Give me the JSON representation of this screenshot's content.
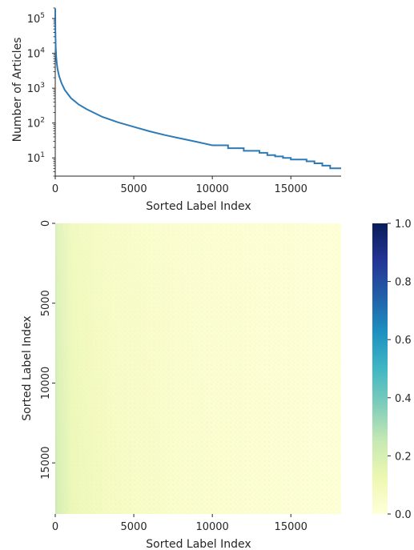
{
  "chart_data": [
    {
      "type": "line",
      "xlabel": "Sorted Label Index",
      "ylabel": "Number of Articles",
      "yscale": "log",
      "xlim": [
        0,
        18200
      ],
      "ylim": [
        3,
        200000
      ],
      "grid": false,
      "x_ticks": [
        0,
        5000,
        10000,
        15000
      ],
      "x_tick_labels": [
        "0",
        "5000",
        "10000",
        "15000"
      ],
      "y_ticks": [
        10,
        100,
        1000,
        10000,
        100000
      ],
      "y_tick_labels": [
        {
          "base": "10",
          "exp": "1"
        },
        {
          "base": "10",
          "exp": "2"
        },
        {
          "base": "10",
          "exp": "3"
        },
        {
          "base": "10",
          "exp": "4"
        },
        {
          "base": "10",
          "exp": "5"
        }
      ],
      "series": [
        {
          "color": "#2e7ab5",
          "x": [
            0,
            10,
            30,
            60,
            100,
            150,
            250,
            400,
            600,
            1000,
            1500,
            2000,
            3000,
            4000,
            5000,
            6000,
            7000,
            8000,
            9000,
            10000,
            11000,
            12000,
            13000,
            13500,
            14000,
            14500,
            15000,
            16000,
            16500,
            17000,
            17500,
            18200
          ],
          "y": [
            190000,
            40000,
            15000,
            8000,
            5000,
            3500,
            2200,
            1400,
            900,
            520,
            340,
            250,
            150,
            105,
            78,
            58,
            45,
            36,
            29,
            23,
            19,
            16,
            14,
            12,
            11,
            10,
            9,
            8,
            7,
            6,
            5,
            5
          ]
        }
      ]
    },
    {
      "type": "heatmap",
      "xlabel": "Sorted Label Index",
      "ylabel": "Sorted Label Index",
      "xlim": [
        0,
        18200
      ],
      "ylim": [
        0,
        18200
      ],
      "x_ticks": [
        0,
        5000,
        10000,
        15000
      ],
      "x_tick_labels": [
        "0",
        "5000",
        "10000",
        "15000"
      ],
      "y_ticks": [
        0,
        5000,
        10000,
        15000
      ],
      "y_tick_labels": [
        "0",
        "5000",
        "10000",
        "15000"
      ],
      "colormap": "YlGnBu",
      "colorbar": {
        "min": 0.0,
        "max": 1.0,
        "ticks": [
          0.0,
          0.2,
          0.4,
          0.6,
          0.8,
          1.0
        ],
        "tick_labels": [
          "0.0",
          "0.2",
          "0.4",
          "0.6",
          "0.8",
          "1.0"
        ]
      },
      "colormap_stops": [
        "#ffffd9",
        "#edf8b1",
        "#c7e9b4",
        "#7fcdbb",
        "#41b6c4",
        "#1d91c0",
        "#225ea8",
        "#253494",
        "#081d58"
      ],
      "background_value": 0.01,
      "left_band_value": 0.2,
      "left_band_extent": 1500
    }
  ]
}
